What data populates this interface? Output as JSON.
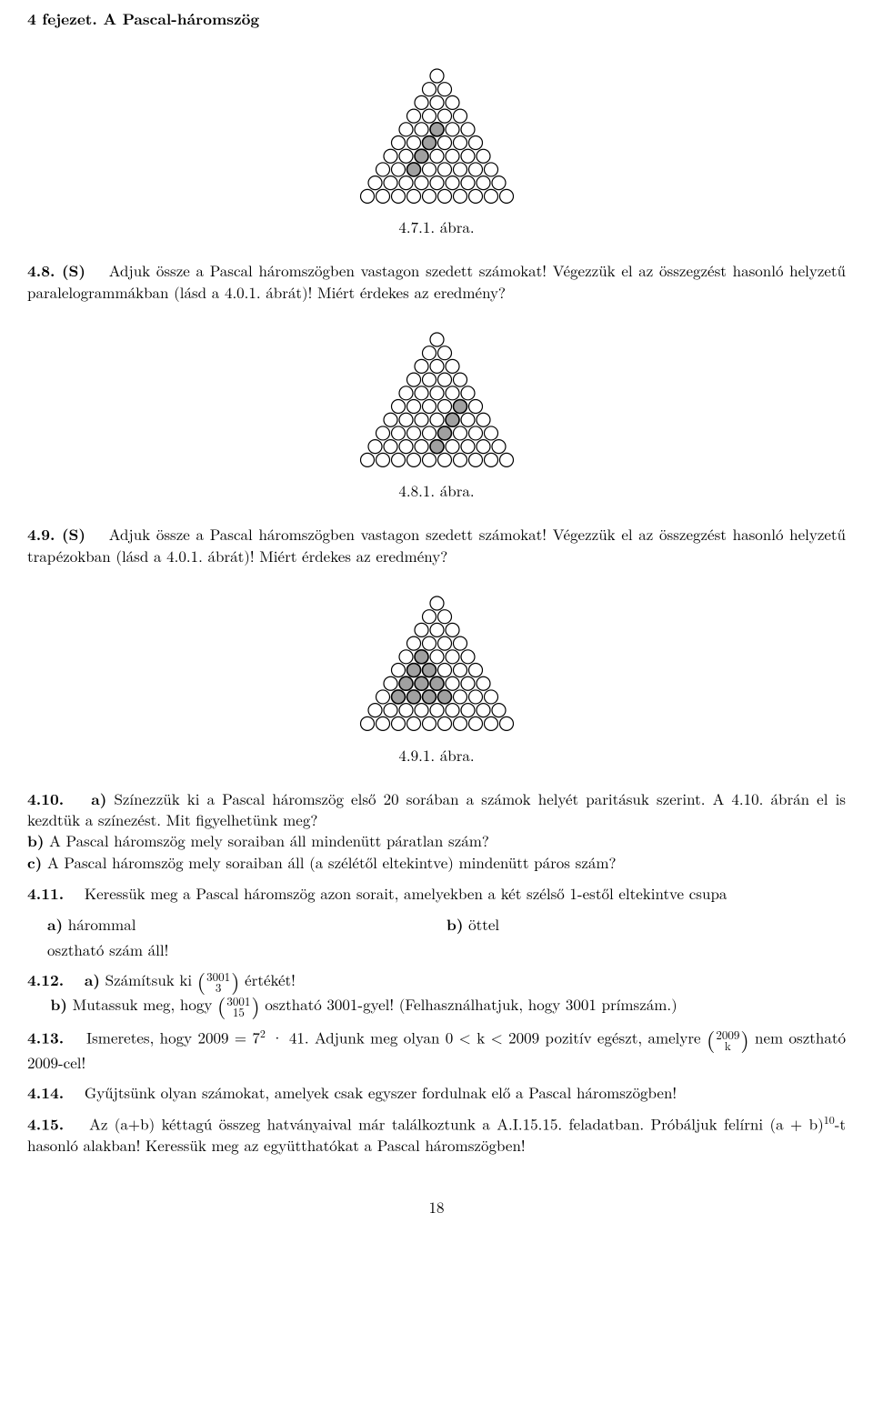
{
  "header": {
    "chapter": "4 fejezet. A Pascal-háromszög"
  },
  "figures": {
    "fig471": {
      "caption": "4.7.1. ábra.",
      "rows": 10,
      "radius": 8.5,
      "stroke": "#000000",
      "fill_empty": "#ffffff",
      "fill_shaded": "#a0a0a0",
      "shaded_cells": [
        [
          4,
          2
        ],
        [
          5,
          2
        ],
        [
          6,
          2
        ],
        [
          7,
          2
        ]
      ]
    },
    "fig481": {
      "caption": "4.8.1. ábra.",
      "rows": 10,
      "radius": 8.5,
      "stroke": "#000000",
      "fill_empty": "#ffffff",
      "fill_shaded": "#a0a0a0",
      "shaded_cells": [
        [
          5,
          4
        ],
        [
          6,
          4
        ],
        [
          7,
          4
        ],
        [
          8,
          4
        ]
      ]
    },
    "fig491": {
      "caption": "4.9.1. ábra.",
      "rows": 10,
      "radius": 8.5,
      "stroke": "#000000",
      "fill_empty": "#ffffff",
      "fill_shaded": "#a0a0a0",
      "shaded_cells": [
        [
          4,
          1
        ],
        [
          5,
          1
        ],
        [
          5,
          2
        ],
        [
          6,
          1
        ],
        [
          6,
          2
        ],
        [
          6,
          3
        ],
        [
          7,
          1
        ],
        [
          7,
          2
        ],
        [
          7,
          3
        ],
        [
          7,
          4
        ]
      ]
    }
  },
  "ex": {
    "e48": {
      "label": "4.8. (S)",
      "text": "Adjuk össze a Pascal háromszögben vastagon szedett számokat! Végezzük el az összegzést hasonló helyzetű paralelogrammákban (lásd a 4.0.1. ábrát)! Miért érdekes az eredmény?"
    },
    "e49": {
      "label": "4.9. (S)",
      "text": "Adjuk össze a Pascal háromszögben vastagon szedett számokat! Végezzük el az összegzést hasonló helyzetű trapézokban (lásd a 4.0.1. ábrát)! Miért érdekes az eredmény?"
    },
    "e410": {
      "label": "4.10.",
      "a_label": "a)",
      "a_text": " Színezzük ki a Pascal háromszög első 20 sorában a számok helyét paritásuk szerint. A 4.10. ábrán el is kezdtük a színezést. Mit figyelhetünk meg?",
      "b_label": "b)",
      "b_text": " A Pascal háromszög mely soraiban áll mindenütt páratlan szám?",
      "c_label": "c)",
      "c_text": " A Pascal háromszög mely soraiban áll (a szélétől eltekintve) mindenütt páros szám?"
    },
    "e411": {
      "label": "4.11.",
      "intro": "Keressük meg a Pascal háromszög azon sorait, amelyekben a két szélső 1-estől eltekintve csupa",
      "a_label": "a)",
      "a_text": "hárommal",
      "b_label": "b)",
      "b_text": "öttel",
      "tail": "osztható szám áll!"
    },
    "e412": {
      "label": "4.12.",
      "a_label": "a)",
      "a_pre": "Számítsuk ki ",
      "a_top": "3001",
      "a_bot": "3",
      "a_post": " értékét!",
      "b_label": "b)",
      "b_pre": "Mutassuk meg, hogy ",
      "b_top": "3001",
      "b_bot": "15",
      "b_post": " osztható 3001-gyel! (Felhasználhatjuk, hogy 3001 prímszám.)"
    },
    "e413": {
      "label": "4.13.",
      "pre": "Ismeretes, hogy 2009 = 7",
      "sup": "2",
      "mid": " · 41. Adjunk meg olyan 0 < k < 2009 pozitív egészt, amelyre ",
      "bin_top": "2009",
      "bin_bot": "k",
      "post": " nem osztható 2009-cel!"
    },
    "e414": {
      "label": "4.14.",
      "text": "Gyűjtsünk olyan számokat, amelyek csak egyszer fordulnak elő a Pascal háromszögben!"
    },
    "e415": {
      "label": "4.15.",
      "pre": "Az (a+b) kéttagú összeg hatványaival már találkoztunk a A.I.15.15. feladatban. Próbáljuk felírni (a + b)",
      "sup": "10",
      "post": "-t hasonló alakban! Keressük meg az együtthatókat a Pascal háromszögben!"
    }
  },
  "footer": {
    "page": "18"
  }
}
